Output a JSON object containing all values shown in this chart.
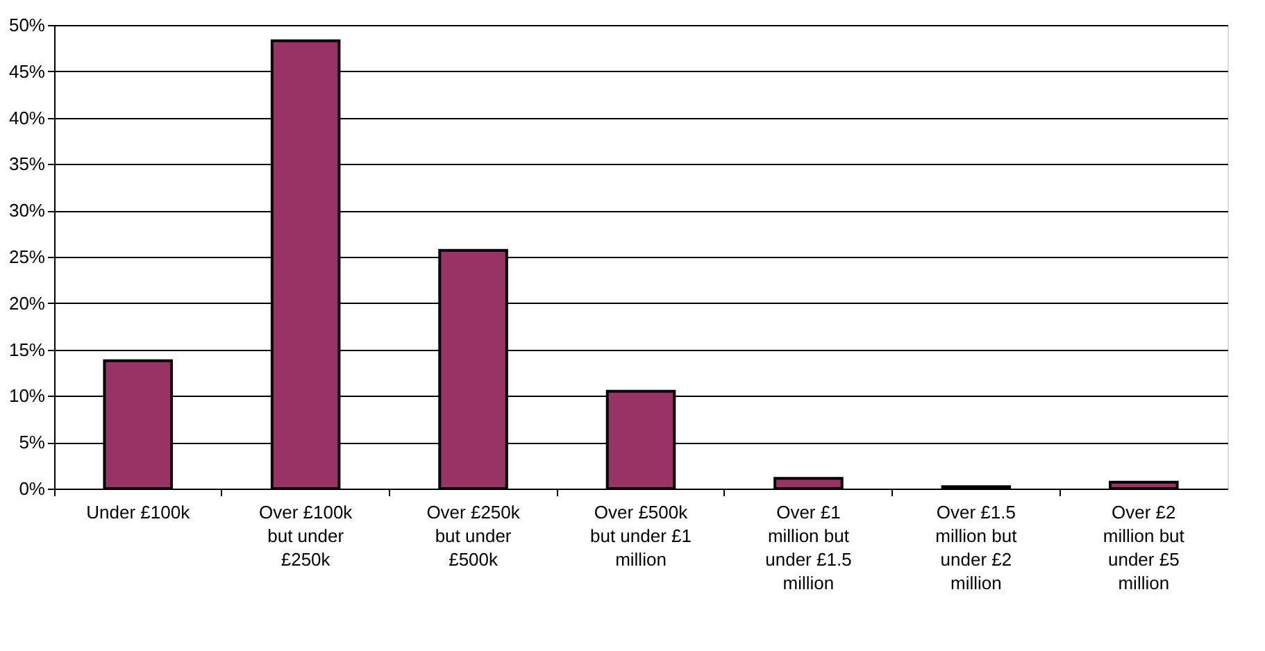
{
  "chart_data": {
    "type": "bar",
    "categories": [
      "Under £100k",
      "Over £100k but under £250k",
      "Over £250k but under £500k",
      "Over £500k but under £1 million",
      "Over £1 million but under £1.5 million",
      "Over £1.5 million but under £2 million",
      "Over £2 million but under £5 million"
    ],
    "values": [
      13.8,
      48.3,
      25.7,
      10.5,
      1.1,
      0.2,
      0.7
    ],
    "color": "#993366",
    "ylim": [
      0,
      50
    ],
    "yticks": [
      {
        "value": 0,
        "label": "0%"
      },
      {
        "value": 5,
        "label": "5%"
      },
      {
        "value": 10,
        "label": "10%"
      },
      {
        "value": 15,
        "label": "15%"
      },
      {
        "value": 20,
        "label": "20%"
      },
      {
        "value": 25,
        "label": "25%"
      },
      {
        "value": 30,
        "label": "30%"
      },
      {
        "value": 35,
        "label": "35%"
      },
      {
        "value": 40,
        "label": "40%"
      },
      {
        "value": 45,
        "label": "45%"
      },
      {
        "value": 50,
        "label": "50%"
      }
    ],
    "grid": "y"
  }
}
